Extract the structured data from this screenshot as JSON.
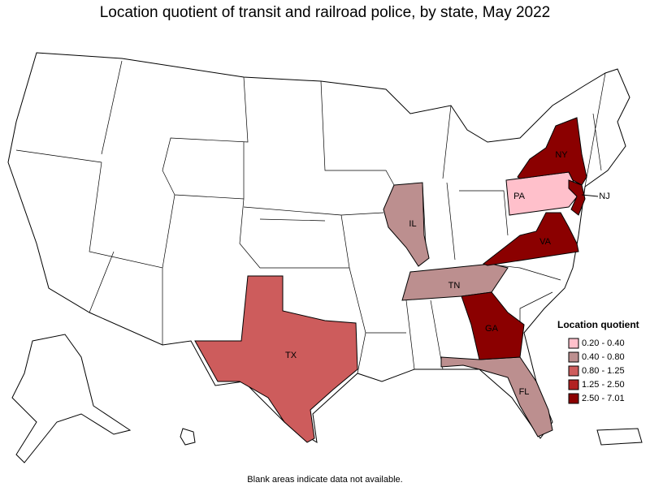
{
  "title": "Location quotient of transit and railroad police, by state, May 2022",
  "legend": {
    "title": "Location quotient",
    "bins": [
      {
        "label": "0.20 - 0.40",
        "color": "#ffc0cb",
        "states": [
          "PA"
        ]
      },
      {
        "label": "0.40 - 0.80",
        "color": "#bc8f8f",
        "states": [
          "IL",
          "TN",
          "FL"
        ]
      },
      {
        "label": "0.80 - 1.25",
        "color": "#cd5c5c",
        "states": [
          "TX"
        ]
      },
      {
        "label": "1.25 - 2.50",
        "color": "#b22222",
        "states": []
      },
      {
        "label": "2.50 - 7.01",
        "color": "#8b0000",
        "states": [
          "NY",
          "NJ",
          "VA",
          "GA"
        ]
      }
    ]
  },
  "footnote": "Blank areas indicate data not available."
}
